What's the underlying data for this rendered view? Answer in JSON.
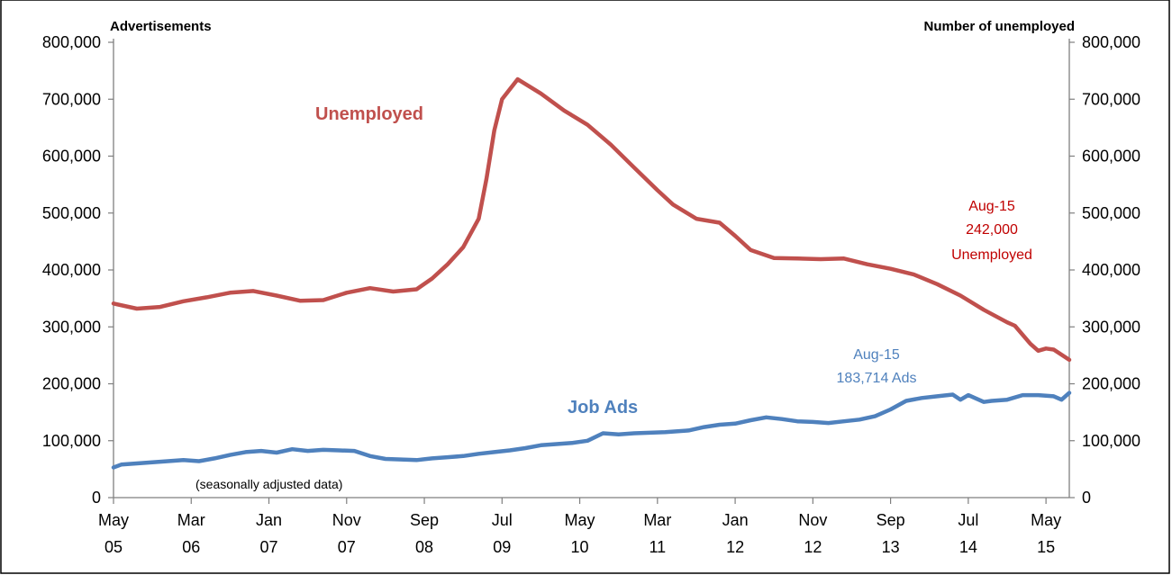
{
  "chart_data": {
    "type": "line",
    "note": "(seasonally adjusted data)",
    "left_axis_title": "Advertisements",
    "right_axis_title": "Number of unemployed",
    "ylim": [
      0,
      800000
    ],
    "y_ticks": [
      "0",
      "100,000",
      "200,000",
      "300,000",
      "400,000",
      "500,000",
      "600,000",
      "700,000",
      "800,000"
    ],
    "x_ticks": [
      {
        "month": "May",
        "year": "05",
        "index": 0
      },
      {
        "month": "Mar",
        "year": "06",
        "index": 10
      },
      {
        "month": "Jan",
        "year": "07",
        "index": 20
      },
      {
        "month": "Nov",
        "year": "07",
        "index": 30
      },
      {
        "month": "Sep",
        "year": "08",
        "index": 40
      },
      {
        "month": "Jul",
        "year": "09",
        "index": 50
      },
      {
        "month": "May",
        "year": "10",
        "index": 60
      },
      {
        "month": "Mar",
        "year": "11",
        "index": 70
      },
      {
        "month": "Jan",
        "year": "12",
        "index": 80
      },
      {
        "month": "Nov",
        "year": "12",
        "index": 90
      },
      {
        "month": "Sep",
        "year": "13",
        "index": 100
      },
      {
        "month": "Jul",
        "year": "14",
        "index": 110
      },
      {
        "month": "May",
        "year": "15",
        "index": 120
      }
    ],
    "x_range": [
      0,
      123
    ],
    "series": [
      {
        "name": "Unemployed",
        "color": "#C0504D",
        "x": [
          0,
          3,
          6,
          9,
          12,
          15,
          18,
          21,
          24,
          27,
          30,
          33,
          36,
          39,
          41,
          43,
          45,
          47,
          48,
          49,
          50,
          52,
          55,
          58,
          61,
          64,
          67,
          70,
          72,
          75,
          78,
          80,
          82,
          85,
          88,
          91,
          94,
          97,
          100,
          103,
          106,
          109,
          112,
          115,
          116,
          118,
          119,
          120,
          121,
          123
        ],
        "y": [
          341000,
          332000,
          335000,
          345000,
          352000,
          360000,
          363000,
          355000,
          346000,
          347000,
          360000,
          368000,
          362000,
          366000,
          385000,
          410000,
          440000,
          490000,
          560000,
          645000,
          700000,
          735000,
          710000,
          680000,
          655000,
          620000,
          580000,
          540000,
          515000,
          490000,
          483000,
          460000,
          435000,
          421000,
          420000,
          419000,
          420000,
          410000,
          402000,
          392000,
          375000,
          355000,
          330000,
          308000,
          302000,
          270000,
          258000,
          262000,
          260000,
          242000
        ]
      },
      {
        "name": "Job Ads",
        "color": "#4F81BD",
        "x": [
          0,
          1,
          3,
          5,
          7,
          9,
          11,
          13,
          15,
          17,
          19,
          21,
          23,
          25,
          27,
          29,
          31,
          33,
          35,
          37,
          39,
          41,
          43,
          45,
          47,
          49,
          51,
          53,
          55,
          57,
          59,
          61,
          63,
          65,
          67,
          69,
          71,
          72,
          74,
          76,
          78,
          80,
          82,
          84,
          86,
          88,
          90,
          92,
          94,
          96,
          98,
          100,
          102,
          104,
          106,
          108,
          109,
          110,
          112,
          113,
          115,
          117,
          119,
          121,
          122,
          123
        ],
        "y": [
          53000,
          58000,
          60000,
          62000,
          64000,
          66000,
          64000,
          69000,
          75000,
          80000,
          82000,
          79000,
          85000,
          82000,
          84000,
          83000,
          82000,
          73000,
          68000,
          67000,
          66000,
          69000,
          71000,
          73000,
          77000,
          80000,
          83000,
          87000,
          92000,
          94000,
          96000,
          100000,
          113000,
          111000,
          113000,
          114000,
          115000,
          116000,
          118000,
          124000,
          128000,
          130000,
          136000,
          141000,
          138000,
          134000,
          133000,
          131000,
          134000,
          137000,
          143000,
          155000,
          170000,
          175000,
          178000,
          181000,
          172000,
          180000,
          168000,
          170000,
          172000,
          180000,
          180000,
          178000,
          172000,
          184000
        ]
      }
    ],
    "series_labels": {
      "unemployed": "Unemployed",
      "job_ads": "Job Ads"
    },
    "annotations": {
      "unemployed_date": "Aug-15",
      "unemployed_value": "242,000",
      "unemployed_caption": "Unemployed",
      "ads_date": "Aug-15",
      "ads_value": "183,714 Ads"
    }
  }
}
